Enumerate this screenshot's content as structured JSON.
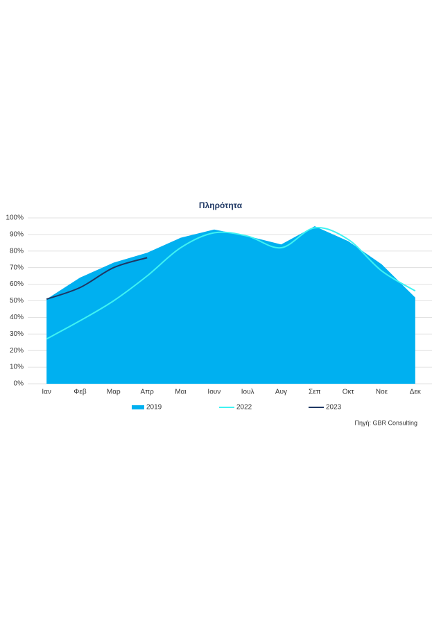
{
  "chart_data": {
    "type": "area-line",
    "title": "Πληρότητα",
    "categories": [
      "Ιαν",
      "Φεβ",
      "Μαρ",
      "Απρ",
      "Μαι",
      "Ιουν",
      "Ιουλ",
      "Αυγ",
      "Σεπ",
      "Οκτ",
      "Νοε",
      "Δεκ"
    ],
    "series": [
      {
        "name": "2019",
        "kind": "area",
        "color": "#00b0f0",
        "values": [
          51,
          64,
          73,
          79,
          88,
          93,
          89,
          84,
          95,
          86,
          72,
          52
        ]
      },
      {
        "name": "2022",
        "kind": "line",
        "color": "#3ff2f2",
        "values": [
          27,
          38,
          50,
          65,
          82,
          91,
          89,
          82,
          94,
          87,
          68,
          56
        ]
      },
      {
        "name": "2023",
        "kind": "line",
        "color": "#1f3864",
        "values": [
          51,
          58,
          70,
          76,
          null,
          null,
          null,
          null,
          null,
          null,
          null,
          null
        ]
      }
    ],
    "ylim": [
      0,
      100
    ],
    "yticks": [
      {
        "value": 0,
        "label": "0%"
      },
      {
        "value": 10,
        "label": "10%"
      },
      {
        "value": 20,
        "label": "20%"
      },
      {
        "value": 30,
        "label": "30%"
      },
      {
        "value": 40,
        "label": "40%"
      },
      {
        "value": 50,
        "label": "50%"
      },
      {
        "value": 60,
        "label": "60%"
      },
      {
        "value": 70,
        "label": "70%"
      },
      {
        "value": 80,
        "label": "80%"
      },
      {
        "value": 90,
        "label": "90%"
      },
      {
        "value": 100,
        "label": "100%"
      }
    ],
    "grid": true,
    "legend": "bottom",
    "source": "Πηγή: GBR Consulting"
  }
}
